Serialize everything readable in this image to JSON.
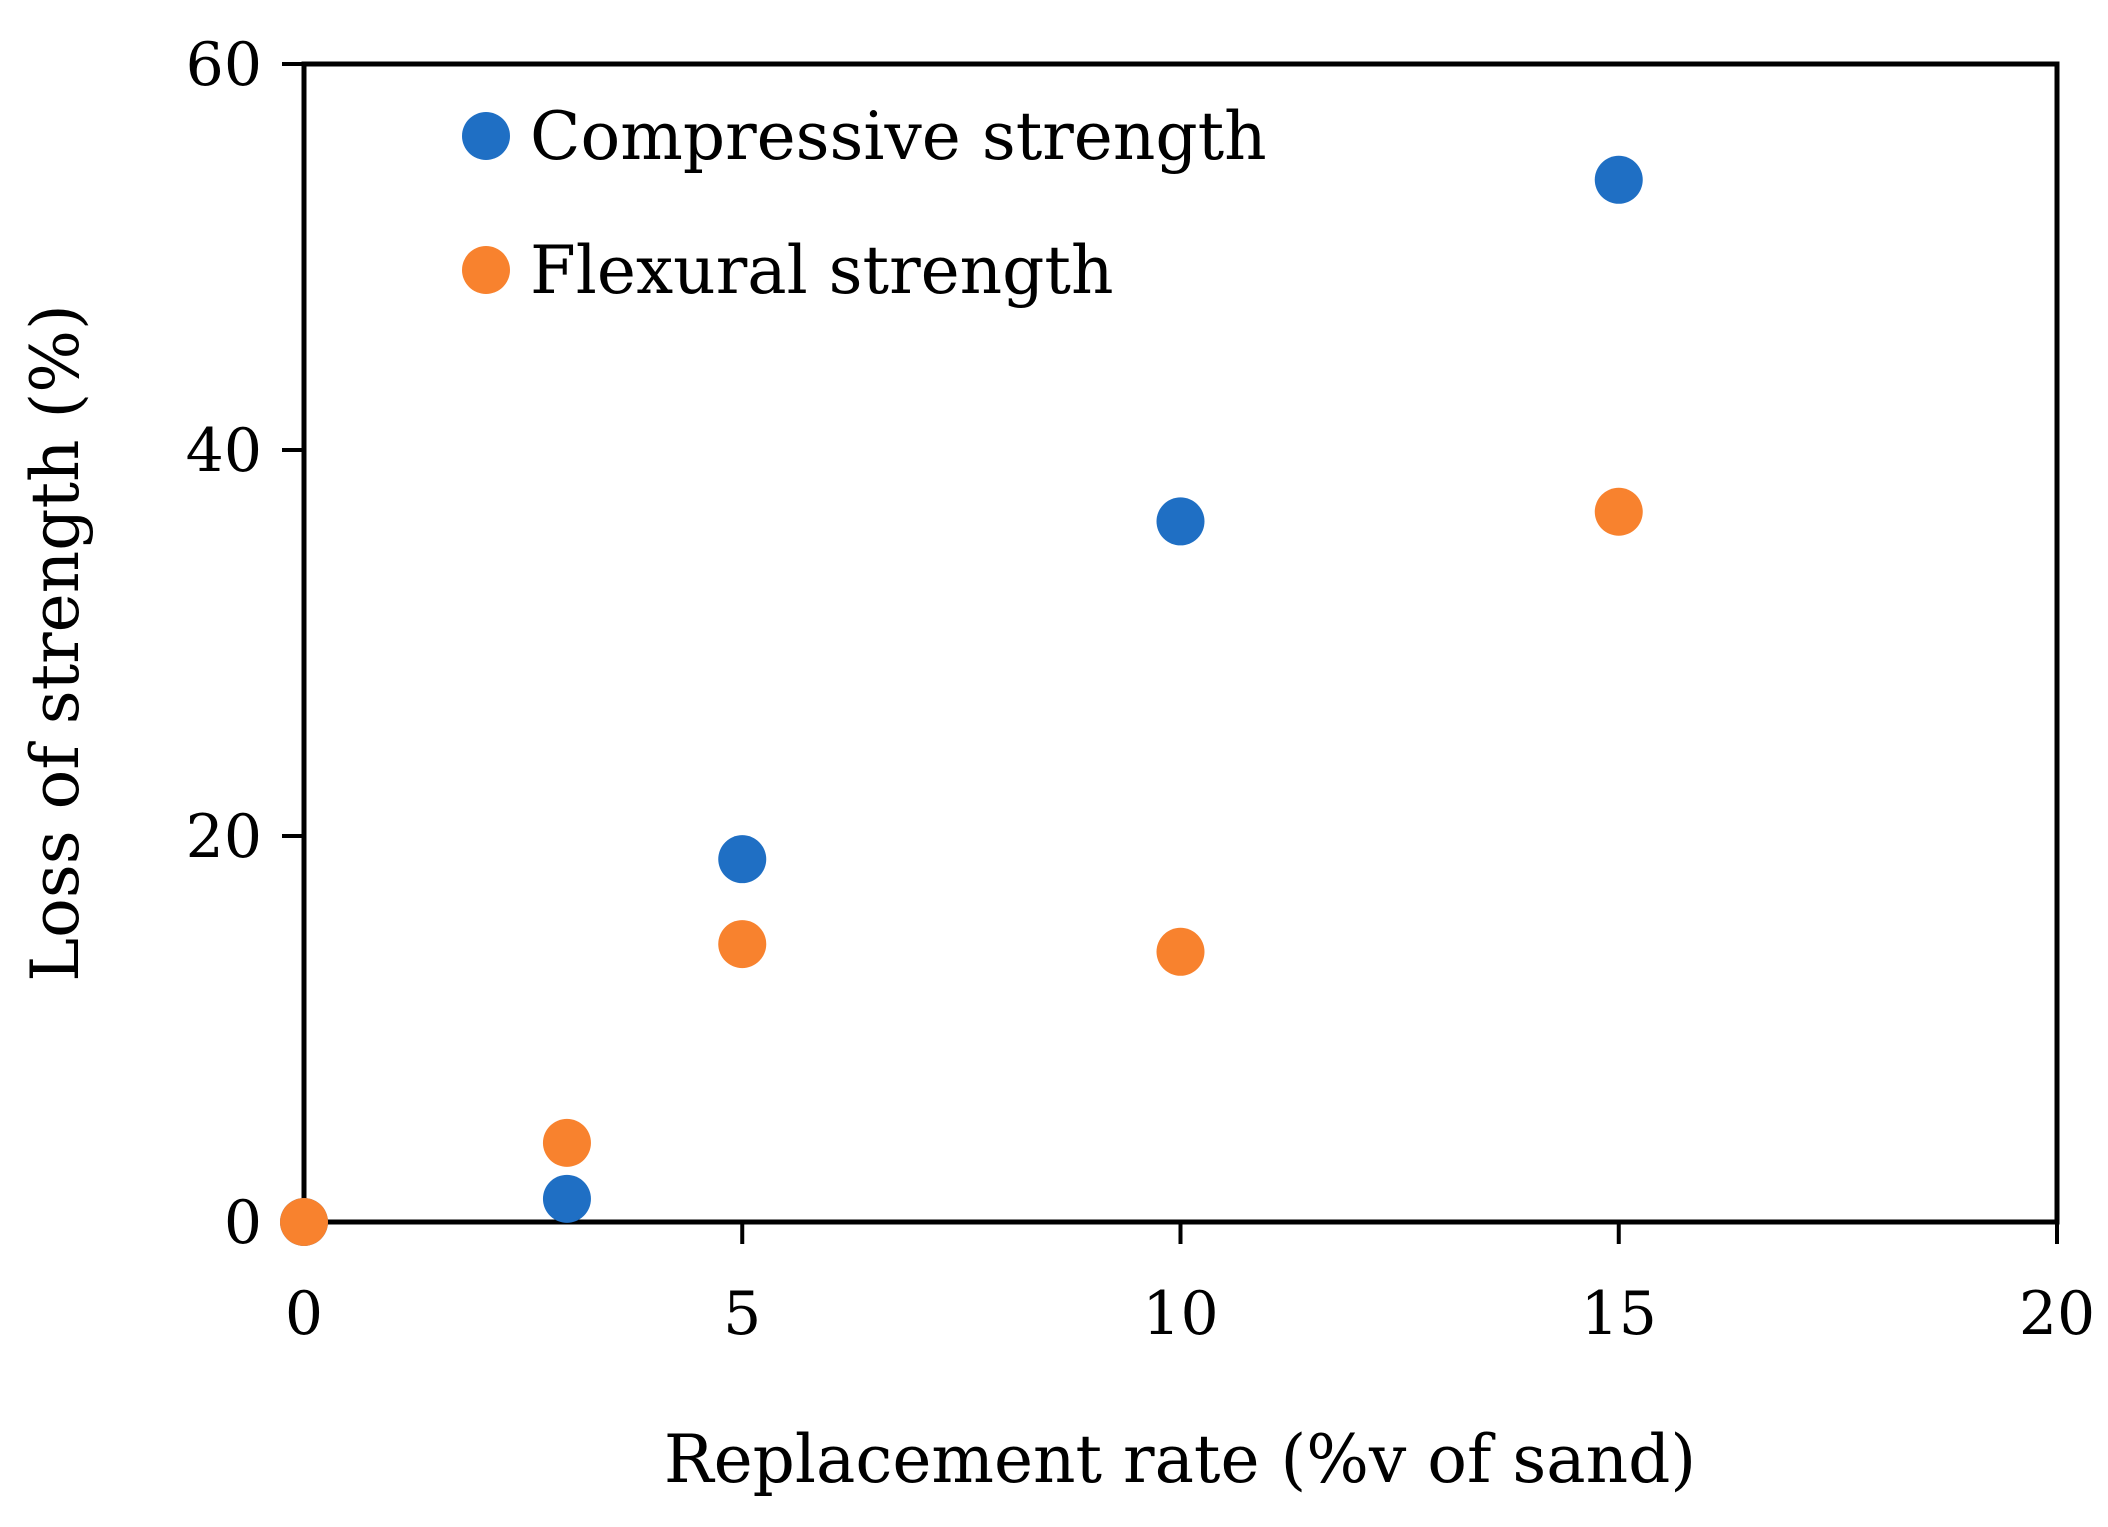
{
  "chart_data": {
    "type": "scatter",
    "title": "",
    "xlabel": "Replacement rate  (%v of sand)",
    "ylabel": "Loss of strength (%)",
    "xlim": [
      0,
      20
    ],
    "ylim": [
      0,
      60
    ],
    "xticks": [
      0,
      5,
      10,
      15,
      20
    ],
    "yticks": [
      0,
      20,
      40,
      60
    ],
    "xtick_labels": [
      "0",
      "5",
      "10",
      "15",
      "20"
    ],
    "ytick_labels": [
      "0",
      "20",
      "40",
      "60"
    ],
    "grid": false,
    "legend_position": "top-left",
    "series": [
      {
        "name": "Compressive strength",
        "color": "#1f6fc4",
        "points": [
          {
            "x": 0,
            "y": 0
          },
          {
            "x": 3,
            "y": 1.2
          },
          {
            "x": 5,
            "y": 18.8
          },
          {
            "x": 10,
            "y": 36.3
          },
          {
            "x": 15,
            "y": 54.0
          }
        ]
      },
      {
        "name": "Flexural strength",
        "color": "#f8822e",
        "points": [
          {
            "x": 0,
            "y": 0
          },
          {
            "x": 3,
            "y": 4.1
          },
          {
            "x": 5,
            "y": 14.4
          },
          {
            "x": 10,
            "y": 14.0
          },
          {
            "x": 15,
            "y": 36.8
          }
        ]
      }
    ]
  }
}
